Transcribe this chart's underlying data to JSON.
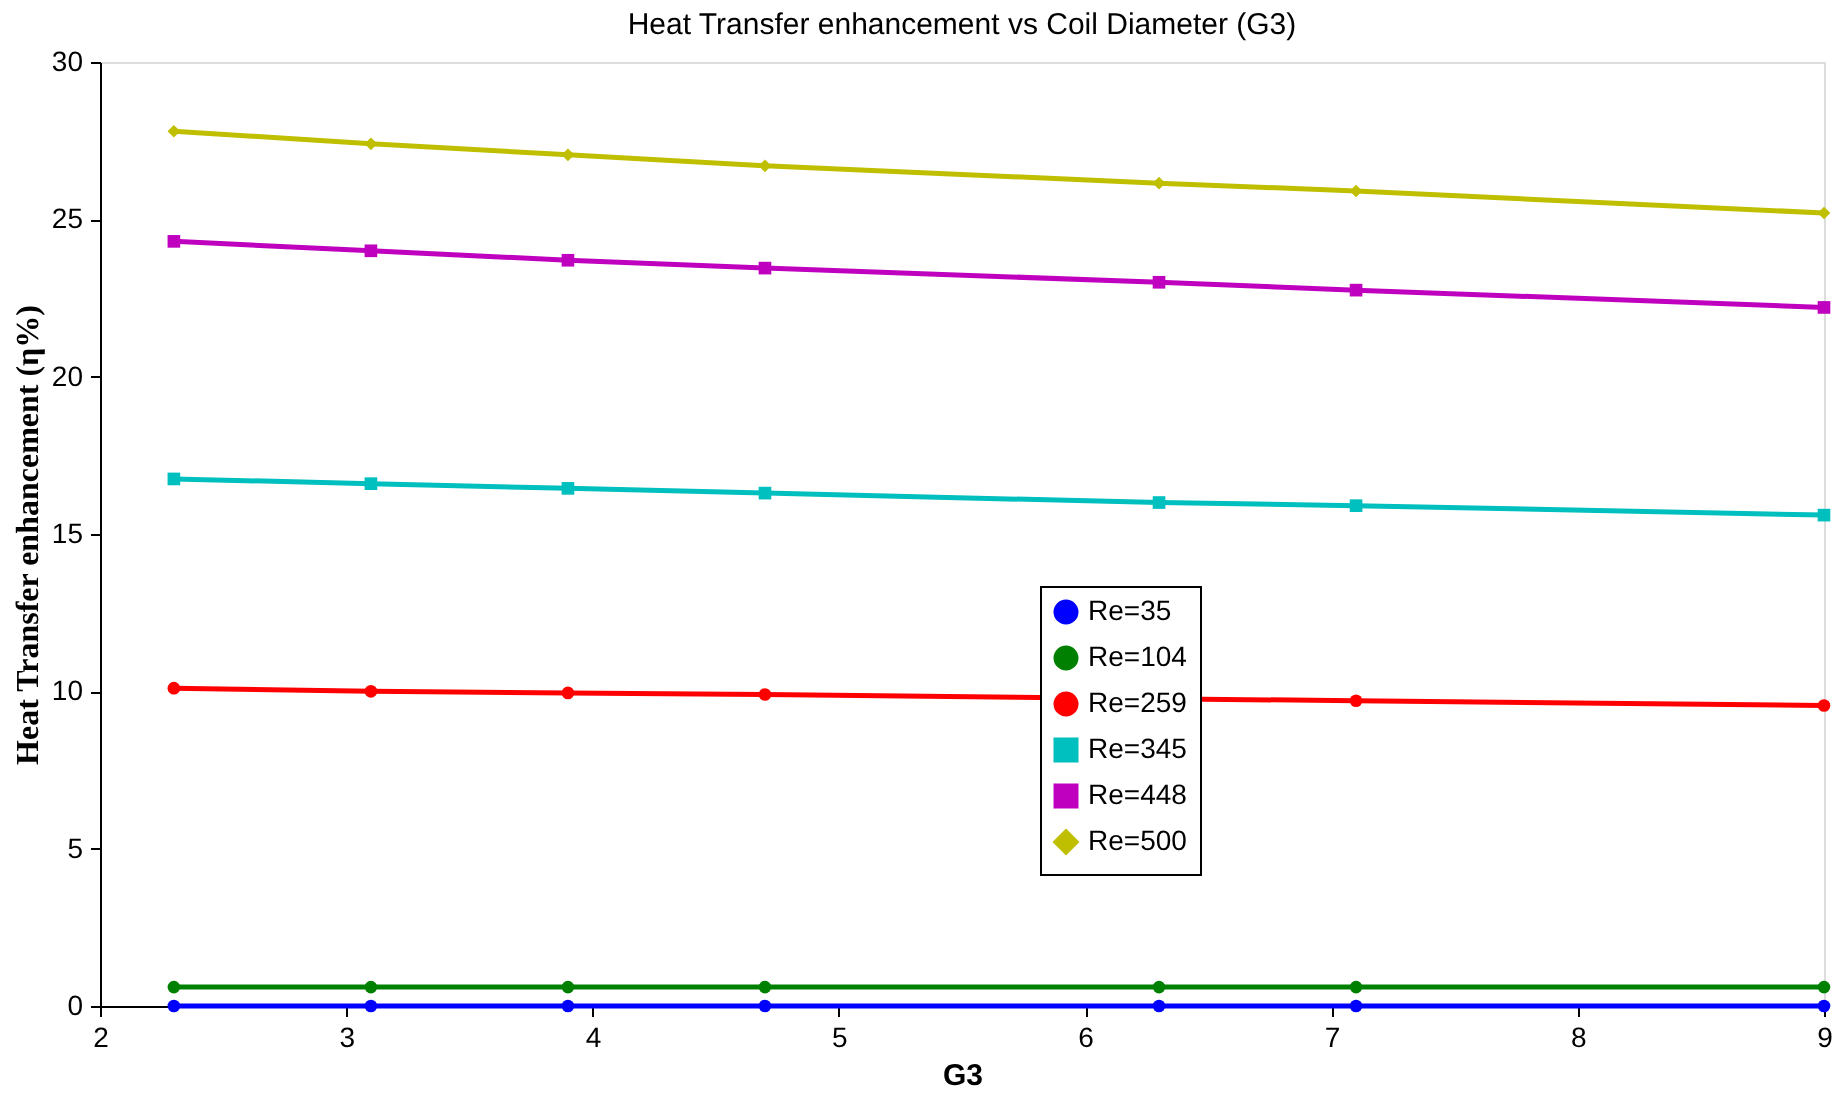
{
  "chart_data": {
    "type": "line",
    "title": "Heat Transfer enhancement vs Coil Diameter (G3)",
    "xlabel": "G3",
    "ylabel": "Heat Transfer enhancement (η%)",
    "x": [
      2.3,
      3.1,
      3.9,
      4.7,
      6.3,
      7.1,
      9
    ],
    "xlim": [
      2,
      9
    ],
    "xticks": [
      2,
      3,
      4,
      5,
      6,
      7,
      8,
      9
    ],
    "ylim": [
      0,
      30
    ],
    "yticks": [
      0,
      5,
      10,
      15,
      20,
      25,
      30
    ],
    "grid": false,
    "legend": "center",
    "line_style": "solid",
    "series": [
      {
        "name": "Re=35",
        "color": "#0000ff",
        "marker": "circle",
        "values": [
          0,
          0,
          0,
          0,
          0,
          0,
          0
        ]
      },
      {
        "name": "Re=104",
        "color": "#008000",
        "marker": "circle",
        "values": [
          0.6,
          0.6,
          0.6,
          0.6,
          0.6,
          0.6,
          0.6
        ]
      },
      {
        "name": "Re=259",
        "color": "#ff0000",
        "marker": "circle",
        "x": [
          2.3,
          3.1,
          3.9,
          4.7,
          7.1,
          9
        ],
        "values": [
          10.1,
          10.0,
          9.95,
          9.9,
          9.7,
          9.55
        ]
      },
      {
        "name": "Re=345",
        "color": "#00bfbf",
        "marker": "square",
        "values": [
          16.75,
          16.6,
          16.45,
          16.3,
          16.0,
          15.9,
          15.6
        ]
      },
      {
        "name": "Re=448",
        "color": "#bf00bf",
        "marker": "square",
        "values": [
          24.3,
          24.0,
          23.7,
          23.45,
          23.0,
          22.75,
          22.2
        ]
      },
      {
        "name": "Re=500",
        "color": "#bfbf00",
        "marker": "diamond",
        "values": [
          27.8,
          27.4,
          27.05,
          26.7,
          26.15,
          25.9,
          25.2
        ]
      }
    ]
  }
}
